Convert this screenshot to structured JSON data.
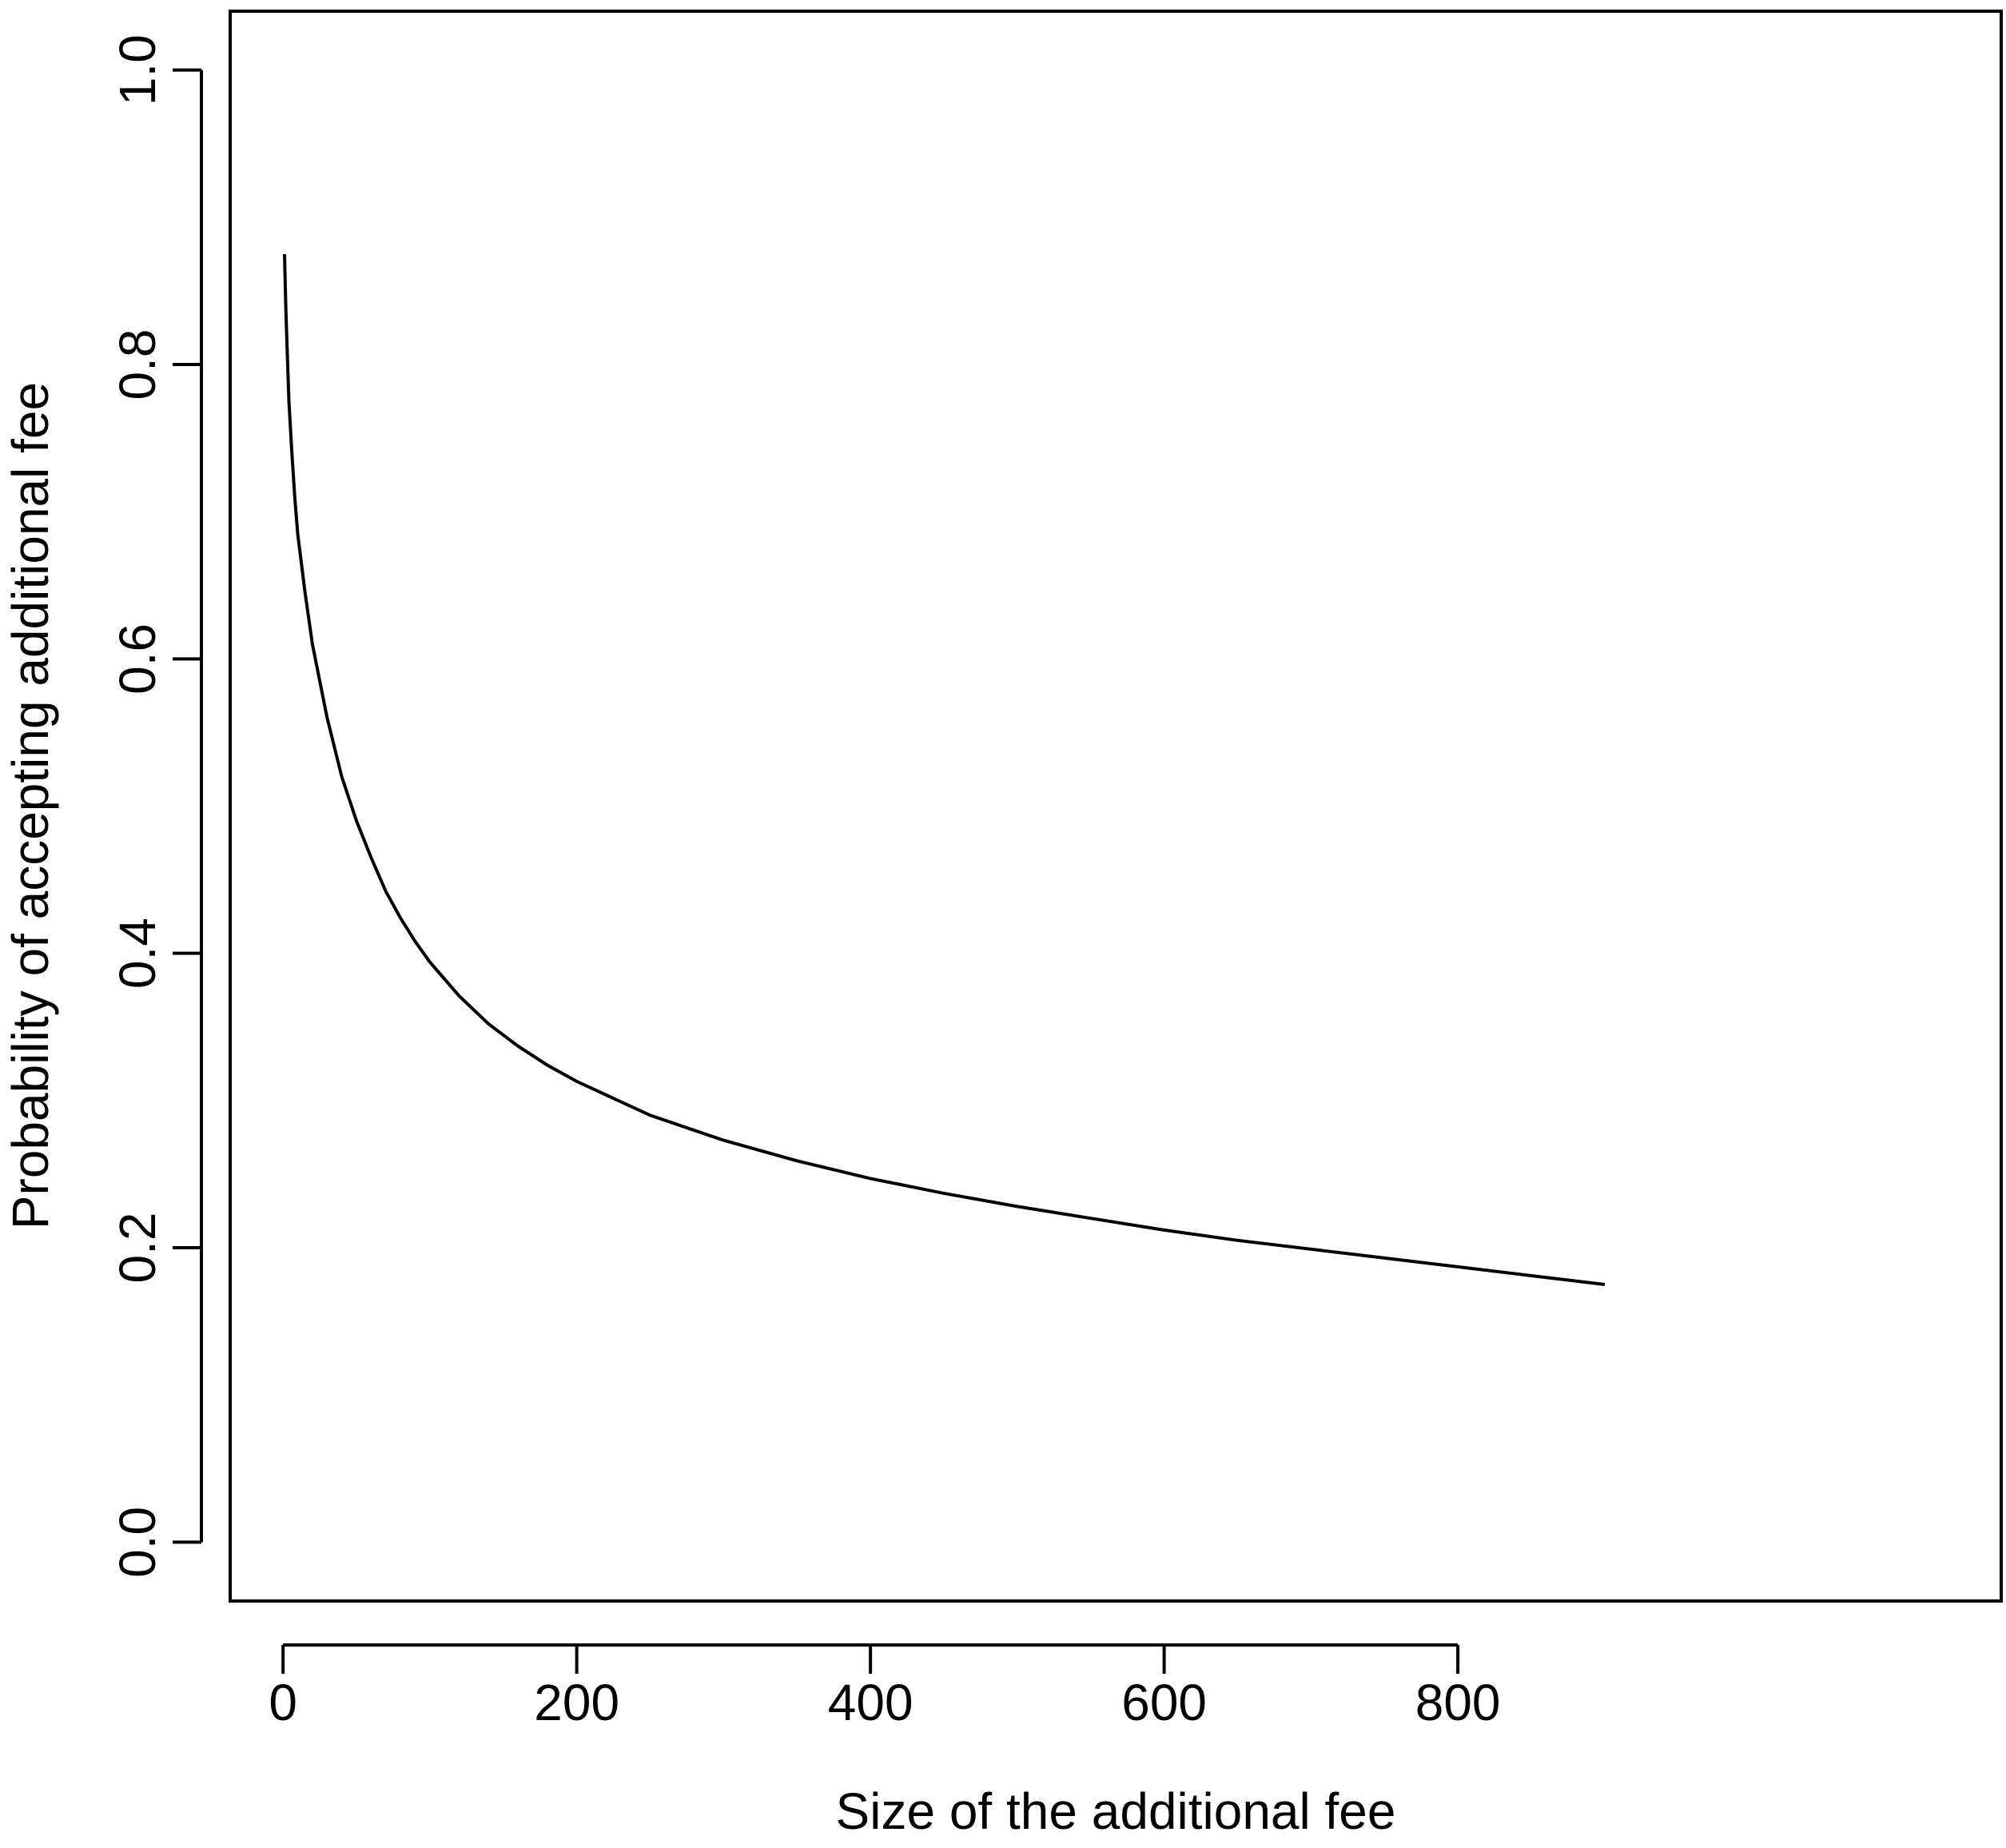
{
  "chart_data": {
    "type": "line",
    "title": "",
    "xlabel": "Size of the additional fee",
    "ylabel": "Probability of accepting additional fee",
    "xlim": [
      -36,
      1170
    ],
    "ylim": [
      -0.04,
      1.04
    ],
    "x_ticks": [
      0,
      200,
      400,
      600,
      800
    ],
    "x_tick_labels": [
      "0",
      "200",
      "400",
      "600",
      "800"
    ],
    "y_ticks": [
      0.0,
      0.2,
      0.4,
      0.6,
      0.8,
      1.0
    ],
    "y_tick_labels": [
      "0.0",
      "0.2",
      "0.4",
      "0.6",
      "0.8",
      "1.0"
    ],
    "grid": false,
    "legend": "none",
    "series": [
      {
        "color": "#000000",
        "x": [
          1,
          2,
          4,
          6,
          8,
          10,
          15,
          20,
          25,
          30,
          40,
          50,
          60,
          70,
          80,
          90,
          100,
          120,
          140,
          160,
          180,
          200,
          250,
          300,
          350,
          400,
          450,
          500,
          550,
          600,
          650,
          700,
          750,
          800,
          850,
          900
        ],
        "y": [
          0.875,
          0.835,
          0.775,
          0.74,
          0.71,
          0.685,
          0.645,
          0.61,
          0.585,
          0.56,
          0.52,
          0.49,
          0.465,
          0.442,
          0.424,
          0.408,
          0.394,
          0.371,
          0.352,
          0.337,
          0.324,
          0.313,
          0.29,
          0.273,
          0.259,
          0.247,
          0.237,
          0.228,
          0.22,
          0.212,
          0.205,
          0.199,
          0.193,
          0.187,
          0.181,
          0.175
        ]
      }
    ]
  }
}
